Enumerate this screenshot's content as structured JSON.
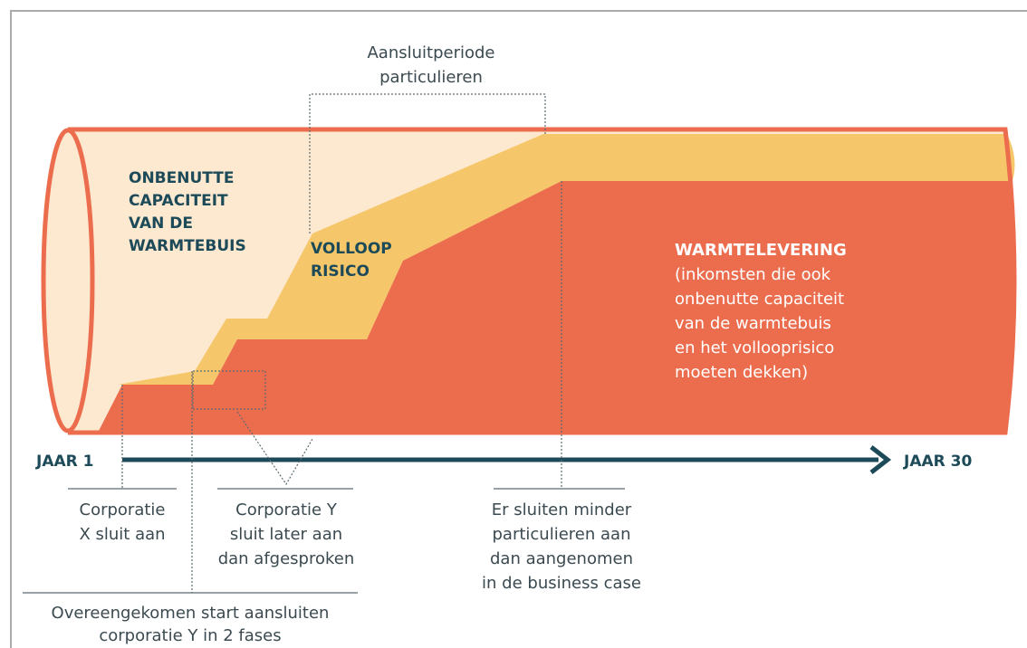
{
  "pipe_labels": {
    "unused_capacity": [
      "ONBENUTTE",
      "CAPACITEIT",
      "VAN DE",
      "WARMTEBUIS"
    ],
    "fill_risk": [
      "VOLLOOP",
      "RISICO"
    ],
    "heat_delivery_title": "WARMTELEVERING",
    "heat_delivery_note": [
      "(inkomsten die ook",
      "onbenutte capaciteit",
      "van de warmtebuis",
      "en het vollooprisico",
      "moeten dekken)"
    ]
  },
  "timeline": {
    "start": "JAAR 1",
    "end": "JAAR 30"
  },
  "annotations": {
    "connection_period": [
      "Aansluitperiode",
      "particulieren"
    ],
    "corporation_x": [
      "Corporatie",
      "X sluit aan"
    ],
    "corporation_y": [
      "Corporatie Y",
      "sluit later aan",
      "dan afgesproken"
    ],
    "fewer_private": [
      "Er sluiten minder",
      "particulieren aan",
      "dan aangenomen",
      "in de business case"
    ],
    "agreed_start": [
      "Overeengekomen start aansluiten",
      "corporatie Y in 2 fases"
    ]
  }
}
